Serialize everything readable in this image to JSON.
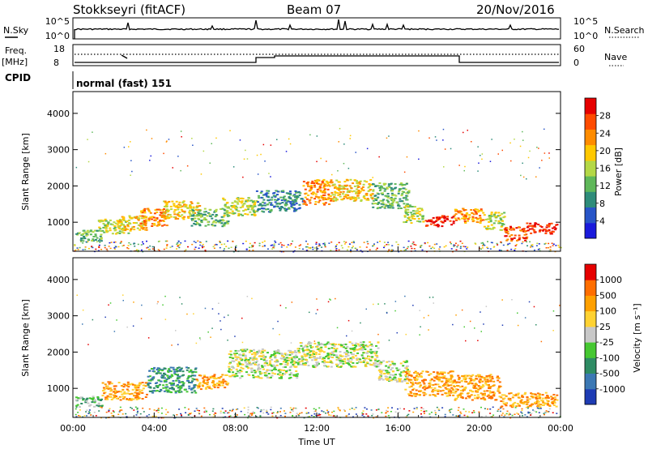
{
  "header": {
    "station": "Stokkseyri (fitACF)",
    "beam": "Beam 07",
    "date": "20/Nov/2016"
  },
  "panels": {
    "nsky": {
      "label": "N.Sky",
      "ticks": [
        "10^5",
        "10^0"
      ],
      "right_label": "N.Search",
      "right_ticks": [
        "10^5",
        "10^0"
      ]
    },
    "freq": {
      "label_line1": "Freq.",
      "label_line2": "[MHz]",
      "ticks": [
        "18",
        "8"
      ],
      "right_label": "Nave",
      "right_ticks": [
        "60",
        "0"
      ]
    },
    "cpid": {
      "label": "CPID",
      "value": "normal (fast) 151"
    }
  },
  "chart_data": [
    {
      "type": "heatmap",
      "name": "power",
      "ylabel": "Slant Range [km]",
      "ylim": [
        200,
        4600
      ],
      "yticks": [
        1000,
        2000,
        3000,
        4000
      ],
      "xlim": [
        0,
        24
      ],
      "colorbar": {
        "label": "Power [dB]",
        "ticks": [
          "4",
          "8",
          "12",
          "16",
          "20",
          "24",
          "28"
        ],
        "colors": [
          "#1a1adc",
          "#2855c8",
          "#2e8c7a",
          "#5fb85a",
          "#b4d846",
          "#ffc800",
          "#ff8c00",
          "#ff4b00",
          "#e60000"
        ]
      },
      "regions": [
        {
          "t0": 0.1,
          "t1": 1.4,
          "r0": 500,
          "r1": 800,
          "level": 3
        },
        {
          "t0": 1.2,
          "t1": 2.8,
          "r0": 700,
          "r1": 1100,
          "level": 4
        },
        {
          "t0": 2.2,
          "t1": 3.6,
          "r0": 800,
          "r1": 1200,
          "level": 5
        },
        {
          "t0": 3.3,
          "t1": 4.6,
          "r0": 900,
          "r1": 1400,
          "level": 6
        },
        {
          "t0": 4.4,
          "t1": 6.2,
          "r0": 1100,
          "r1": 1600,
          "level": 5
        },
        {
          "t0": 5.8,
          "t1": 7.6,
          "r0": 900,
          "r1": 1400,
          "level": 3
        },
        {
          "t0": 7.3,
          "t1": 9.0,
          "r0": 1200,
          "r1": 1700,
          "level": 4
        },
        {
          "t0": 9.0,
          "t1": 11.3,
          "r0": 1300,
          "r1": 1900,
          "level": 2
        },
        {
          "t0": 11.3,
          "t1": 12.7,
          "r0": 1500,
          "r1": 2200,
          "level": 6
        },
        {
          "t0": 12.7,
          "t1": 14.7,
          "r0": 1600,
          "r1": 2200,
          "level": 5
        },
        {
          "t0": 14.7,
          "t1": 16.5,
          "r0": 1400,
          "r1": 2100,
          "level": 3
        },
        {
          "t0": 16.2,
          "t1": 17.2,
          "r0": 1000,
          "r1": 1500,
          "level": 4
        },
        {
          "t0": 17.3,
          "t1": 18.7,
          "r0": 900,
          "r1": 1200,
          "level": 8
        },
        {
          "t0": 18.7,
          "t1": 20.2,
          "r0": 1000,
          "r1": 1400,
          "level": 6
        },
        {
          "t0": 20.2,
          "t1": 21.2,
          "r0": 800,
          "r1": 1300,
          "level": 4
        },
        {
          "t0": 21.2,
          "t1": 22.3,
          "r0": 500,
          "r1": 900,
          "level": 7
        },
        {
          "t0": 22.3,
          "t1": 23.8,
          "r0": 700,
          "r1": 1000,
          "level": 8
        }
      ]
    },
    {
      "type": "heatmap",
      "name": "velocity",
      "ylabel": "Slant Range [km]",
      "ylim": [
        200,
        4600
      ],
      "yticks": [
        1000,
        2000,
        3000,
        4000
      ],
      "xlim": [
        0,
        24
      ],
      "xticks": [
        "00:00",
        "04:00",
        "08:00",
        "12:00",
        "16:00",
        "20:00",
        "00:00"
      ],
      "xlabel": "Time UT",
      "colorbar": {
        "label": "Velocity [m s⁻¹]",
        "ticks": [
          "1000",
          "500",
          "100",
          "25",
          "-25",
          "-100",
          "-500",
          "-1000"
        ],
        "colors": [
          "#1e3cb4",
          "#3c78b4",
          "#2e8c64",
          "#46c832",
          "#c8c8c8",
          "#ffd232",
          "#ffa000",
          "#ff6e00",
          "#e60000"
        ]
      },
      "regions": [
        {
          "t0": 0.1,
          "t1": 1.4,
          "r0": 500,
          "r1": 800,
          "level": 3
        },
        {
          "t0": 1.4,
          "t1": 3.6,
          "r0": 700,
          "r1": 1200,
          "level": 6
        },
        {
          "t0": 3.6,
          "t1": 6.0,
          "r0": 900,
          "r1": 1600,
          "level": 2
        },
        {
          "t0": 6.0,
          "t1": 7.6,
          "r0": 1000,
          "r1": 1400,
          "level": 6
        },
        {
          "t0": 7.6,
          "t1": 11.0,
          "r0": 1300,
          "r1": 2100,
          "level": 4
        },
        {
          "t0": 11.0,
          "t1": 15.0,
          "r0": 1600,
          "r1": 2300,
          "level": 4
        },
        {
          "t0": 15.0,
          "t1": 16.5,
          "r0": 1200,
          "r1": 1800,
          "level": 4
        },
        {
          "t0": 16.3,
          "t1": 18.7,
          "r0": 800,
          "r1": 1500,
          "level": 6
        },
        {
          "t0": 18.7,
          "t1": 21.0,
          "r0": 700,
          "r1": 1400,
          "level": 6
        },
        {
          "t0": 21.0,
          "t1": 23.8,
          "r0": 500,
          "r1": 900,
          "level": 6
        }
      ]
    }
  ]
}
